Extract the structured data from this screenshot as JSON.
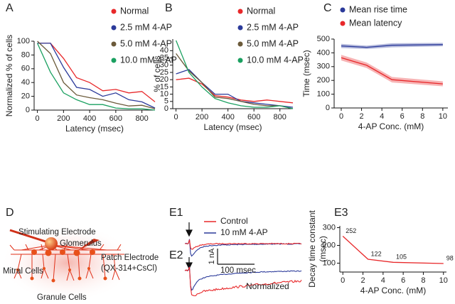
{
  "chart_data": [
    {
      "panel": "A",
      "type": "line",
      "xlabel": "Latency (msec)",
      "ylabel": "Normalized % of cells",
      "x": [
        0,
        100,
        200,
        300,
        400,
        500,
        600,
        700,
        800,
        900
      ],
      "xlim": [
        -25,
        900
      ],
      "ylim": [
        0,
        100
      ],
      "xticks": [
        0,
        200,
        400,
        600,
        800
      ],
      "yticks": [
        0,
        20,
        40,
        60,
        80,
        100
      ],
      "legend": "upper right",
      "series": [
        {
          "name": "Normal",
          "color": "#e8282a",
          "values": [
            97,
            97,
            75,
            47,
            40,
            28,
            30,
            25,
            27,
            12
          ]
        },
        {
          "name": "2.5 mM 4-AP",
          "color": "#2b3a9a",
          "values": [
            97,
            97,
            62,
            33,
            30,
            20,
            25,
            15,
            12,
            3
          ]
        },
        {
          "name": "5.0 mM 4-AP",
          "color": "#6b5a3a",
          "values": [
            100,
            82,
            40,
            22,
            18,
            15,
            10,
            6,
            7,
            2
          ]
        },
        {
          "name": "10.0 mM 4-AP",
          "color": "#1aa060",
          "values": [
            97,
            55,
            25,
            15,
            8,
            8,
            3,
            2,
            2,
            0
          ]
        }
      ]
    },
    {
      "panel": "B",
      "type": "line",
      "xlabel": "Latency (msec)",
      "ylabel": "% of cells",
      "x": [
        0,
        100,
        200,
        300,
        400,
        500,
        600,
        700,
        800,
        900
      ],
      "xlim": [
        -25,
        900
      ],
      "ylim": [
        0,
        48
      ],
      "xticks": [
        0,
        200,
        400,
        600,
        800
      ],
      "yticks": [
        0,
        5,
        10,
        15,
        20,
        25,
        30,
        35,
        40
      ],
      "legend": "upper right",
      "series": [
        {
          "name": "Normal",
          "color": "#e8282a",
          "values": [
            20,
            21,
            17,
            9,
            8,
            6,
            5,
            6,
            5,
            4
          ]
        },
        {
          "name": "2.5 mM 4-AP",
          "color": "#2b3a9a",
          "values": [
            24,
            27,
            18,
            10,
            10,
            5,
            4,
            3,
            2,
            1
          ]
        },
        {
          "name": "5.0 mM 4-AP",
          "color": "#6b5a3a",
          "values": [
            38,
            26,
            18,
            8,
            7,
            5,
            3,
            2,
            2,
            0
          ]
        },
        {
          "name": "10.0 mM 4-AP",
          "color": "#1aa060",
          "values": [
            47,
            25,
            15,
            7,
            4,
            2,
            1,
            1,
            2,
            0
          ]
        }
      ]
    },
    {
      "panel": "C",
      "type": "line",
      "xlabel": "4-AP Conc. (mM)",
      "ylabel": "Time (msec)",
      "x": [
        0,
        2.5,
        5,
        10
      ],
      "xlim": [
        -0.7,
        10.5
      ],
      "ylim": [
        0,
        500
      ],
      "xticks": [
        0,
        2,
        4,
        6,
        8,
        10
      ],
      "yticks": [
        0,
        100,
        200,
        300,
        400,
        500
      ],
      "legend": "upper left",
      "series": [
        {
          "name": "Mean rise time",
          "color": "#2b3a9a",
          "values": [
            450,
            440,
            455,
            460
          ],
          "errors": [
            15,
            12,
            15,
            12
          ]
        },
        {
          "name": "Mean latency",
          "color": "#e8282a",
          "values": [
            365,
            310,
            205,
            175
          ],
          "errors": [
            20,
            20,
            20,
            18
          ]
        }
      ]
    },
    {
      "panel": "E3",
      "type": "line",
      "xlabel": "4-AP Conc. (mM)",
      "ylabel": [
        "Decay time constant",
        "(msec)"
      ],
      "x": [
        0,
        2.5,
        5,
        10
      ],
      "xlim": [
        -0.3,
        10.3
      ],
      "ylim": [
        50,
        310
      ],
      "xticks": [
        0,
        2,
        4,
        6,
        8,
        10
      ],
      "yticks": [
        100,
        200,
        300
      ],
      "data_labels": true,
      "series": [
        {
          "color": "#e8282a",
          "values": [
            252,
            122,
            105,
            98
          ]
        }
      ]
    }
  ],
  "diagram": {
    "panel": "D",
    "labels": [
      "Stimulating Electrode",
      "Glomerulus",
      "Patch Electrode",
      "(QX-314+CsCl)",
      "Mitral Cells",
      "Granule Cells"
    ]
  },
  "traces": {
    "panels": [
      "E1",
      "E2"
    ],
    "legend": [
      {
        "name": "Control",
        "color": "#e8282a"
      },
      {
        "name": "10 mM 4-AP",
        "color": "#2b3a9a"
      }
    ],
    "scale_y": "1 nA",
    "scale_x": "100 msec",
    "annotation": "Normalized"
  }
}
